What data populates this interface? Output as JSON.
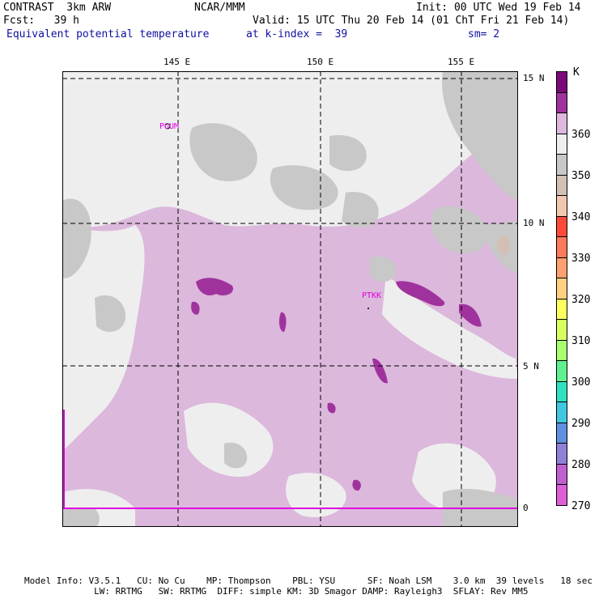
{
  "header": {
    "left_line1": "CONTRAST  3km ARW",
    "left_line2": "Fcst:   39 h",
    "center_line1": "NCAR/MMM",
    "init": "Init: 00 UTC Wed 19 Feb 14",
    "valid": "Valid: 15 UTC Thu 20 Feb 14 (01 ChT Fri 21 Feb 14)",
    "field": "Equivalent potential temperature",
    "level": "at k-index =  39",
    "smooth": "sm= 2"
  },
  "map": {
    "lon_labels": [
      "145 E",
      "150 E",
      "155 E"
    ],
    "lat_labels": [
      "15 N",
      "10 N",
      "5 N",
      "0"
    ],
    "stations": [
      "PGUM",
      "PTKK"
    ]
  },
  "colorbar": {
    "unit": "K",
    "labels": [
      "360",
      "350",
      "340",
      "330",
      "320",
      "310",
      "300",
      "290",
      "280",
      "270"
    ],
    "colors": [
      "#7a0a7a",
      "#a0329e",
      "#dcb8dc",
      "#eeeeee",
      "#c8c8c8",
      "#d2c0b4",
      "#f0c8b0",
      "#ff4a3a",
      "#ff7a5a",
      "#ffa070",
      "#ffd080",
      "#ffff60",
      "#d8ff60",
      "#a8ff70",
      "#60f090",
      "#30e0c0",
      "#40c8e0",
      "#6090e0",
      "#9080d8",
      "#c060d0",
      "#dd60d8"
    ]
  },
  "footer": {
    "line1": "Model Info: V3.5.1   CU: No Cu    MP: Thompson    PBL: YSU      SF: Noah LSM    3.0 km  39 levels   18 sec",
    "line2": "             LW: RRTMG   SW: RRTMG  DIFF: simple KM: 3D Smagor DAMP: Rayleigh3  SFLAY: Rev MM5"
  }
}
